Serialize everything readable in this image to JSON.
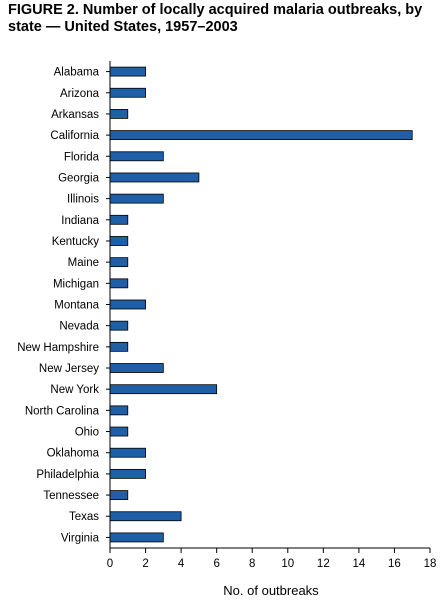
{
  "chart_data": {
    "type": "bar",
    "orientation": "horizontal",
    "title": "FIGURE 2. Number of locally acquired malaria outbreaks, by state  — United States, 1957–2003",
    "xlabel": "No. of outbreaks",
    "ylabel": "",
    "xlim": [
      0,
      18
    ],
    "xticks": [
      0,
      2,
      4,
      6,
      8,
      10,
      12,
      14,
      16,
      18
    ],
    "grid": false,
    "legend": "none",
    "bar_color": "#1f5fa8",
    "categories": [
      "Alabama",
      "Arizona",
      "Arkansas",
      "California",
      "Florida",
      "Georgia",
      "Illinois",
      "Indiana",
      "Kentucky",
      "Maine",
      "Michigan",
      "Montana",
      "Nevada",
      "New Hampshire",
      "New Jersey",
      "New York",
      "North Carolina",
      "Ohio",
      "Oklahoma",
      "Philadelphia",
      "Tennessee",
      "Texas",
      "Virginia"
    ],
    "values": [
      2,
      2,
      1,
      17,
      3,
      5,
      3,
      1,
      1,
      1,
      1,
      2,
      1,
      1,
      3,
      6,
      1,
      1,
      2,
      2,
      1,
      4,
      3
    ]
  }
}
